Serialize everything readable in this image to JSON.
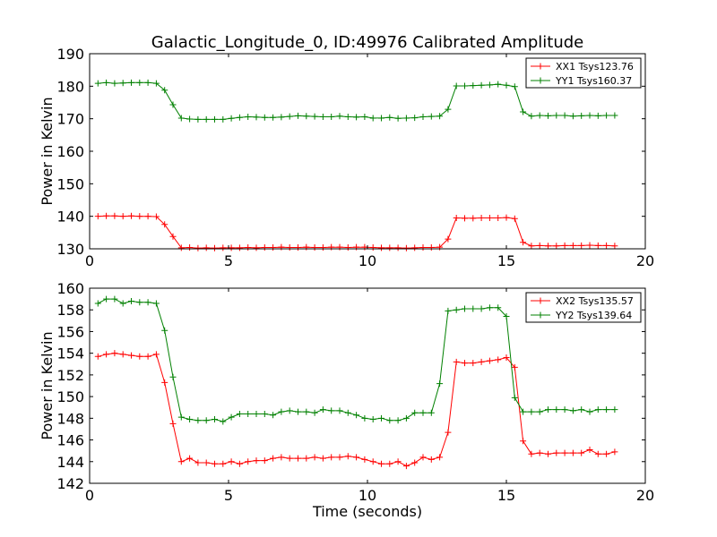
{
  "figure": {
    "title": "Galactic_Longitude_0, ID:49976 Calibrated Amplitude"
  },
  "chart_data": [
    {
      "type": "line",
      "title": "Galactic_Longitude_0, ID:49976 Calibrated Amplitude",
      "xlabel": "",
      "ylabel": "Power in Kelvin",
      "xlim": [
        0,
        20
      ],
      "ylim": [
        130,
        190
      ],
      "xticks": [
        0,
        5,
        10,
        15,
        20
      ],
      "yticks": [
        130,
        140,
        150,
        160,
        170,
        180,
        190
      ],
      "grid": false,
      "legend_position": "top-right",
      "x": [
        0.3,
        0.6,
        0.9,
        1.2,
        1.5,
        1.8,
        2.1,
        2.4,
        2.7,
        3.0,
        3.3,
        3.6,
        3.9,
        4.2,
        4.5,
        4.8,
        5.1,
        5.4,
        5.7,
        6.0,
        6.3,
        6.6,
        6.9,
        7.2,
        7.5,
        7.8,
        8.1,
        8.4,
        8.7,
        9.0,
        9.3,
        9.6,
        9.9,
        10.2,
        10.5,
        10.8,
        11.1,
        11.4,
        11.7,
        12.0,
        12.3,
        12.6,
        12.9,
        13.2,
        13.5,
        13.8,
        14.1,
        14.4,
        14.7,
        15.0,
        15.3,
        15.6,
        15.9,
        16.2,
        16.5,
        16.8,
        17.1,
        17.4,
        17.7,
        18.0,
        18.3,
        18.6,
        18.9
      ],
      "series": [
        {
          "name": "XX1 Tsys123.76",
          "color": "#ff0000",
          "values": [
            140.0,
            140.1,
            140.1,
            140.0,
            140.1,
            140.0,
            140.0,
            139.9,
            137.5,
            133.8,
            130.3,
            130.4,
            130.2,
            130.3,
            130.2,
            130.3,
            130.3,
            130.3,
            130.4,
            130.3,
            130.4,
            130.4,
            130.5,
            130.4,
            130.4,
            130.5,
            130.4,
            130.4,
            130.5,
            130.5,
            130.4,
            130.5,
            130.5,
            130.4,
            130.3,
            130.3,
            130.3,
            130.2,
            130.3,
            130.4,
            130.4,
            130.5,
            133.0,
            139.5,
            139.4,
            139.4,
            139.5,
            139.5,
            139.5,
            139.6,
            139.3,
            132.0,
            130.9,
            131.0,
            130.9,
            130.9,
            131.0,
            131.0,
            131.0,
            131.1,
            131.0,
            131.0,
            130.9
          ]
        },
        {
          "name": "YY1 Tsys160.37",
          "color": "#008000",
          "values": [
            180.9,
            181.1,
            180.9,
            181.0,
            181.1,
            181.1,
            181.1,
            180.9,
            178.8,
            174.3,
            170.2,
            169.9,
            169.8,
            169.8,
            169.8,
            169.8,
            170.1,
            170.4,
            170.6,
            170.5,
            170.4,
            170.4,
            170.5,
            170.7,
            170.9,
            170.8,
            170.7,
            170.6,
            170.6,
            170.8,
            170.6,
            170.5,
            170.6,
            170.2,
            170.2,
            170.4,
            170.1,
            170.2,
            170.3,
            170.6,
            170.7,
            170.8,
            172.9,
            180.1,
            180.1,
            180.2,
            180.3,
            180.4,
            180.6,
            180.3,
            179.9,
            172.1,
            170.8,
            171.0,
            170.9,
            171.0,
            171.0,
            170.8,
            170.9,
            171.0,
            170.9,
            171.0,
            171.0
          ]
        }
      ]
    },
    {
      "type": "line",
      "title": "",
      "xlabel": "Time (seconds)",
      "ylabel": "Power in Kelvin",
      "xlim": [
        0,
        20
      ],
      "ylim": [
        142,
        160
      ],
      "xticks": [
        0,
        5,
        10,
        15,
        20
      ],
      "yticks": [
        142,
        144,
        146,
        148,
        150,
        152,
        154,
        156,
        158,
        160
      ],
      "grid": false,
      "legend_position": "top-right",
      "x": [
        0.3,
        0.6,
        0.9,
        1.2,
        1.5,
        1.8,
        2.1,
        2.4,
        2.7,
        3.0,
        3.3,
        3.6,
        3.9,
        4.2,
        4.5,
        4.8,
        5.1,
        5.4,
        5.7,
        6.0,
        6.3,
        6.6,
        6.9,
        7.2,
        7.5,
        7.8,
        8.1,
        8.4,
        8.7,
        9.0,
        9.3,
        9.6,
        9.9,
        10.2,
        10.5,
        10.8,
        11.1,
        11.4,
        11.7,
        12.0,
        12.3,
        12.6,
        12.9,
        13.2,
        13.5,
        13.8,
        14.1,
        14.4,
        14.7,
        15.0,
        15.3,
        15.6,
        15.9,
        16.2,
        16.5,
        16.8,
        17.1,
        17.4,
        17.7,
        18.0,
        18.3,
        18.6,
        18.9
      ],
      "series": [
        {
          "name": "XX2 Tsys135.57",
          "color": "#ff0000",
          "values": [
            153.7,
            153.9,
            154.0,
            153.9,
            153.8,
            153.7,
            153.7,
            153.9,
            151.3,
            147.5,
            144.0,
            144.3,
            143.9,
            143.9,
            143.8,
            143.8,
            144.0,
            143.8,
            144.0,
            144.1,
            144.1,
            144.3,
            144.4,
            144.3,
            144.3,
            144.3,
            144.4,
            144.3,
            144.4,
            144.4,
            144.5,
            144.4,
            144.2,
            144.0,
            143.8,
            143.8,
            144.0,
            143.6,
            143.9,
            144.4,
            144.2,
            144.4,
            146.7,
            153.2,
            153.1,
            153.1,
            153.2,
            153.3,
            153.4,
            153.6,
            152.7,
            145.9,
            144.7,
            144.8,
            144.7,
            144.8,
            144.8,
            144.8,
            144.8,
            145.1,
            144.7,
            144.7,
            144.9
          ]
        },
        {
          "name": "YY2 Tsys139.64",
          "color": "#008000",
          "values": [
            158.6,
            159.0,
            159.0,
            158.6,
            158.8,
            158.7,
            158.7,
            158.6,
            156.1,
            151.8,
            148.1,
            147.9,
            147.8,
            147.8,
            147.9,
            147.7,
            148.1,
            148.4,
            148.4,
            148.4,
            148.4,
            148.3,
            148.6,
            148.7,
            148.6,
            148.6,
            148.5,
            148.8,
            148.7,
            148.7,
            148.5,
            148.3,
            148.0,
            147.9,
            148.0,
            147.8,
            147.8,
            148.0,
            148.5,
            148.5,
            148.5,
            151.2,
            157.9,
            158.0,
            158.1,
            158.1,
            158.1,
            158.2,
            158.2,
            157.4,
            149.9,
            148.6,
            148.6,
            148.6,
            148.8,
            148.8,
            148.8,
            148.7,
            148.8,
            148.6,
            148.8,
            148.8,
            148.8
          ]
        }
      ]
    }
  ]
}
